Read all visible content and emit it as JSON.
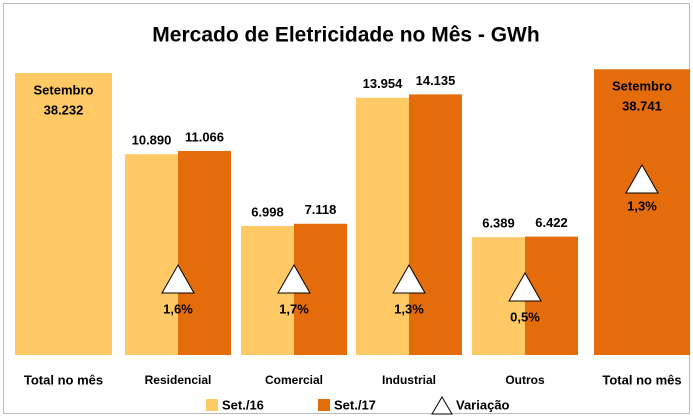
{
  "chart_data": {
    "type": "bar",
    "title": "Mercado de Eletricidade no Mês - GWh",
    "categories": [
      "Residencial",
      "Comercial",
      "Industrial",
      "Outros"
    ],
    "series": [
      {
        "name": "Set./16",
        "color": "#ffc965",
        "values": [
          10890,
          6998,
          13954,
          6389
        ],
        "value_labels": [
          "10.890",
          "6.998",
          "13.954",
          "6.389"
        ]
      },
      {
        "name": "Set./17",
        "color": "#e46c0a",
        "values": [
          11066,
          7118,
          14135,
          6422
        ],
        "value_labels": [
          "11.066",
          "7.118",
          "14.135",
          "6.422"
        ]
      }
    ],
    "variation": {
      "name": "Variação",
      "values": [
        1.6,
        1.7,
        1.3,
        0.5
      ],
      "value_labels": [
        "1,6%",
        "1,7%",
        "1,3%",
        "0,5%"
      ]
    },
    "totals": [
      {
        "category": "Total no mês",
        "month": "Setembro",
        "value": 38232,
        "value_label": "38.232",
        "color": "#ffc965"
      },
      {
        "category": "Total no mês",
        "month": "Setembro",
        "value": 38741,
        "value_label": "38.741",
        "color": "#e46c0a",
        "variation": 1.3,
        "variation_label": "1,3%"
      }
    ],
    "ylim": [
      0,
      16000
    ],
    "y2lim": [
      0,
      40000
    ]
  }
}
